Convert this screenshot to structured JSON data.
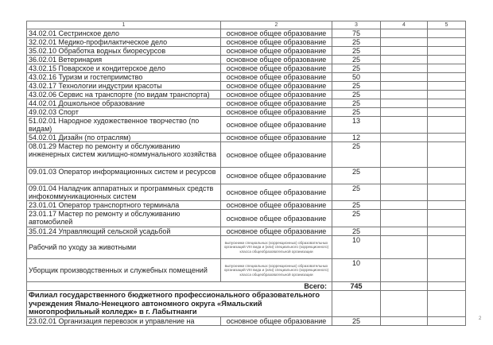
{
  "header": [
    "1",
    "2",
    "3",
    "4",
    "5"
  ],
  "rows": [
    {
      "name": "34.02.01 Сестринское дело",
      "level": "основное общее образование",
      "count": "75"
    },
    {
      "name": "32.02.01 Медико-профилактическое дело",
      "level": "основное общее образование",
      "count": "25"
    },
    {
      "name": "35.02.10 Обработка водных биоресурсов",
      "level": "основное общее образование",
      "count": "25"
    },
    {
      "name": "36.02.01 Ветеринария",
      "level": "основное общее образование",
      "count": "25"
    },
    {
      "name": "43.02.15 Поварское и кондитерское дело",
      "level": "основное общее образование",
      "count": "25"
    },
    {
      "name": "43.02.16 Туризм и гостеприимство",
      "level": "основное общее образование",
      "count": "50"
    },
    {
      "name": "43.02.17 Технологии индустрии красоты",
      "level": "основное общее образование",
      "count": "25"
    },
    {
      "name": "43.02.06 Сервис на транспорте (по видам транспорта)",
      "level": "основное общее образование",
      "count": "25"
    },
    {
      "name": "44.02.01 Дошкольное образование",
      "level": "основное общее образование",
      "count": "25"
    },
    {
      "name": "49.02.03 Спорт",
      "level": "основное общее образование",
      "count": "25"
    },
    {
      "name": "51.02.01 Народное художественное творчество (по видам)",
      "level": "основное общее образование",
      "count": "13"
    },
    {
      "name": "54.02.01 Дизайн (по отраслям)",
      "level": "основное общее образование",
      "count": "12"
    },
    {
      "name": "08.01.29 Мастер по ремонту и обслуживанию инженерных систем жилищно-коммунального хозяйства",
      "level": "основное общее образование",
      "count": "25"
    },
    {
      "name": "09.01.03 Оператор информационных систем и ресурсов",
      "level": "основное общее образование",
      "count": "25"
    },
    {
      "name": "09.01.04 Наладчик аппаратных и программных средств инфокоммуникационных систем",
      "level": "основное общее образование",
      "count": "25"
    },
    {
      "name": "23.01.01 Оператор транспортного терминала",
      "level": "основное общее образование",
      "count": "25"
    },
    {
      "name": "23.01.17 Мастер по ремонту и обслуживанию автомобилей",
      "level": "основное общее образование",
      "count": "25"
    },
    {
      "name": "35.01.24 Управляющий сельской усадьбой",
      "level": "основное общее образование",
      "count": "25"
    },
    {
      "name": "Рабочий по уходу за животными",
      "level": "выпускники специальных (коррекционных) образовательных организаций VIII вида и (или) специального (коррекционного) класса общеобразовательной организации",
      "count": "10"
    },
    {
      "name": "Уборщик производственных и служебных помещений",
      "level": "выпускники специальных (коррекционных) образовательных организаций VIII вида и (или) специального (коррекционного) класса общеобразовательной организации",
      "count": "10"
    }
  ],
  "total": {
    "label": "Всего:",
    "value": "745"
  },
  "branch": "Филиал государственного бюджетного профессионального образовательного учреждения Ямало-Ненецкого автономного округа «Ямальский многопрофильный колледж» в г. Лабытнанги",
  "last_row": {
    "name": "23.02.01 Организация перевозок и управление на",
    "level": "основное общее образование",
    "count": "25"
  },
  "page_number": "2"
}
